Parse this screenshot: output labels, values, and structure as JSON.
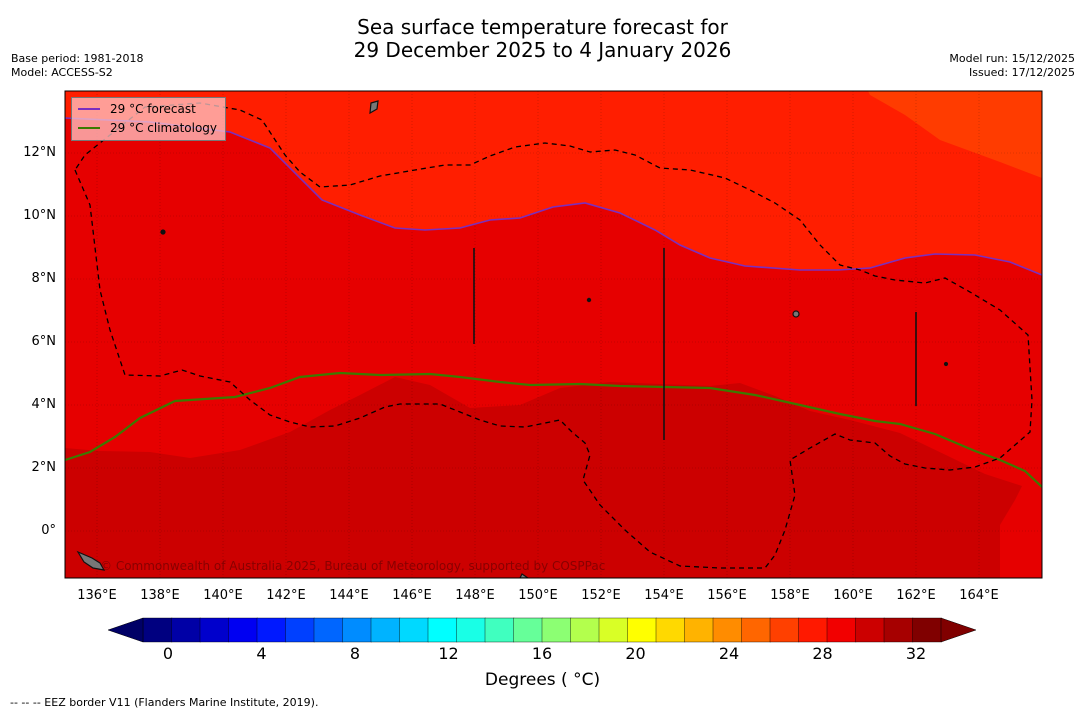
{
  "title": {
    "line1": "Sea surface temperature forecast for",
    "line2": "29 December 2025 to 4 January 2026"
  },
  "meta_left": {
    "base_period": "Base period: 1981-2018",
    "model": "Model: ACCESS-S2"
  },
  "meta_right": {
    "model_run": "Model run: 15/12/2025",
    "issued": "Issued: 17/12/2025"
  },
  "map": {
    "lon_range": [
      135,
      166
    ],
    "lat_range": [
      -1.5,
      14
    ],
    "lon_labels": [
      "136°E",
      "138°E",
      "140°E",
      "142°E",
      "144°E",
      "146°E",
      "148°E",
      "150°E",
      "152°E",
      "154°E",
      "156°E",
      "158°E",
      "160°E",
      "162°E",
      "164°E"
    ],
    "lat_labels": [
      "12°N",
      "10°N",
      "8°N",
      "6°N",
      "4°N",
      "2°N",
      "0°"
    ],
    "colors": {
      "band_28_29": "#e60000",
      "band_29_30": "#ff1e00",
      "band_30_31": "#ff3c00",
      "band_27_28": "#cc0000",
      "forecast_line": "#7b2fbf",
      "climatology_line": "#3c7a00",
      "eez_line": "#000000"
    },
    "credit": "© Commonwealth of Australia 2025, Bureau of Meteorology, supported by COSPPac"
  },
  "legend": {
    "forecast": "29 °C  forecast",
    "climatology": "29 °C  climatology"
  },
  "colorbar": {
    "tick_labels": [
      "0",
      "4",
      "8",
      "12",
      "16",
      "20",
      "24",
      "28",
      "32"
    ],
    "title": "Degrees ( °C)",
    "range": [
      0,
      32
    ],
    "colors": [
      "#000080",
      "#0000a6",
      "#0000cc",
      "#0000f2",
      "#0019ff",
      "#0040ff",
      "#0066ff",
      "#008cff",
      "#00b3ff",
      "#00d9ff",
      "#00ffff",
      "#19ffe6",
      "#40ffbf",
      "#66ff99",
      "#8cff73",
      "#b3ff4d",
      "#d9ff26",
      "#ffff00",
      "#ffd900",
      "#ffb300",
      "#ff8c00",
      "#ff6600",
      "#ff4000",
      "#ff1900",
      "#f20000",
      "#cc0000",
      "#a60000",
      "#800000"
    ]
  },
  "footnote": "-- -- -- EEZ border V11 (Flanders Marine Institute, 2019)."
}
